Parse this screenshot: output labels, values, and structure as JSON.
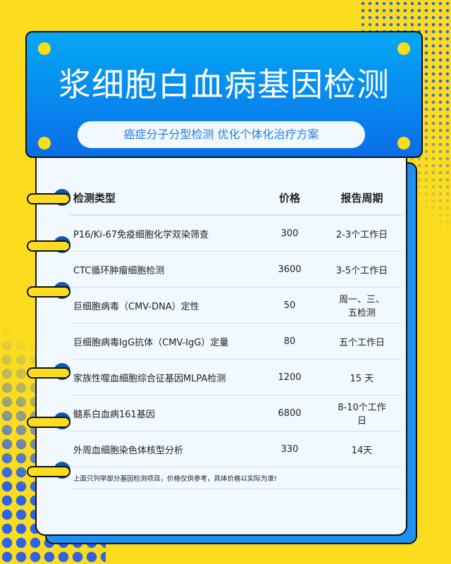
{
  "header": {
    "title": "浆细胞白血病基因检测",
    "subtitle": "癌症分子分型检测 优化个体化治疗方案"
  },
  "table": {
    "columns": [
      "检测类型",
      "价格",
      "报告周期"
    ],
    "rows": [
      {
        "type": "P16/Ki-67免疫细胞化学双染筛查",
        "price": "300",
        "period": "2-3个工作日"
      },
      {
        "type": "CTC循环肿瘤细胞检测",
        "price": "3600",
        "period": "3-5个工作日"
      },
      {
        "type": "巨细胞病毒（CMV-DNA）定性",
        "price": "50",
        "period": "周一、三、五检测"
      },
      {
        "type": "巨细胞病毒IgG抗体（CMV-IgG）定量",
        "price": "80",
        "period": "五个工作日"
      },
      {
        "type": "家族性噬血细胞综合征基因MLPA检测",
        "price": "1200",
        "period": "15 天"
      },
      {
        "type": "髓系白血病161基因",
        "price": "6800",
        "period": "8-10个工作日"
      },
      {
        "type": "外周血细胞染色体核型分析",
        "price": "330",
        "period": "14天"
      }
    ],
    "note": "上面只列举部分基因检测项目，价格仅供参考，具体价格以实际为准!"
  },
  "colors": {
    "background": "#fbdc1f",
    "accent": "#0a6ee8",
    "card": "#f2f8ff"
  }
}
